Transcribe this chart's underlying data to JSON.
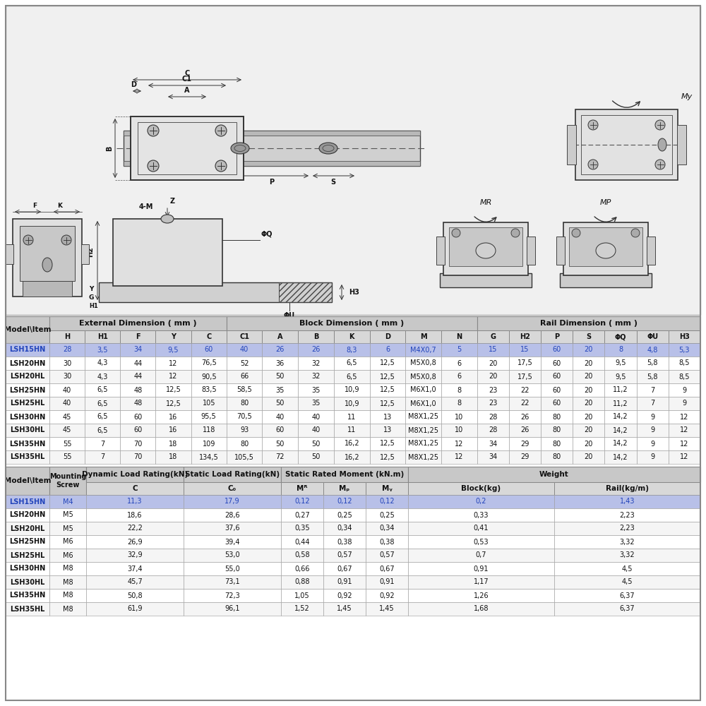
{
  "table1_header_groups": [
    {
      "label": "External Dimension ( mm )",
      "cols": 5
    },
    {
      "label": "Block Dimension ( mm )",
      "cols": 7
    },
    {
      "label": "Rail Dimension ( mm )",
      "cols": 7
    }
  ],
  "table1_subheader": [
    "H",
    "H1",
    "F",
    "Y",
    "C",
    "C1",
    "A",
    "B",
    "K",
    "D",
    "M",
    "N",
    "G",
    "H2",
    "P",
    "S",
    "ΦQ",
    "ΦU",
    "H3"
  ],
  "table1_rows": [
    [
      "LSH15HN",
      "28",
      "3,5",
      "34",
      "9,5",
      "60",
      "40",
      "26",
      "26",
      "8,3",
      "6",
      "M4X0,7",
      "5",
      "15",
      "15",
      "60",
      "20",
      "8",
      "4,8",
      "5,3"
    ],
    [
      "LSH20HN",
      "30",
      "4,3",
      "44",
      "12",
      "76,5",
      "52",
      "36",
      "32",
      "6,5",
      "12,5",
      "M5X0,8",
      "6",
      "20",
      "17,5",
      "60",
      "20",
      "9,5",
      "5,8",
      "8,5"
    ],
    [
      "LSH20HL",
      "30",
      "4,3",
      "44",
      "12",
      "90,5",
      "66",
      "50",
      "32",
      "6,5",
      "12,5",
      "M5X0,8",
      "6",
      "20",
      "17,5",
      "60",
      "20",
      "9,5",
      "5,8",
      "8,5"
    ],
    [
      "LSH25HN",
      "40",
      "6,5",
      "48",
      "12,5",
      "83,5",
      "58,5",
      "35",
      "35",
      "10,9",
      "12,5",
      "M6X1,0",
      "8",
      "23",
      "22",
      "60",
      "20",
      "11,2",
      "7",
      "9"
    ],
    [
      "LSH25HL",
      "40",
      "6,5",
      "48",
      "12,5",
      "105",
      "80",
      "50",
      "35",
      "10,9",
      "12,5",
      "M6X1,0",
      "8",
      "23",
      "22",
      "60",
      "20",
      "11,2",
      "7",
      "9"
    ],
    [
      "LSH30HN",
      "45",
      "6,5",
      "60",
      "16",
      "95,5",
      "70,5",
      "40",
      "40",
      "11",
      "13",
      "M8X1,25",
      "10",
      "28",
      "26",
      "80",
      "20",
      "14,2",
      "9",
      "12"
    ],
    [
      "LSH30HL",
      "45",
      "6,5",
      "60",
      "16",
      "118",
      "93",
      "60",
      "40",
      "11",
      "13",
      "M8X1,25",
      "10",
      "28",
      "26",
      "80",
      "20",
      "14,2",
      "9",
      "12"
    ],
    [
      "LSH35HN",
      "55",
      "7",
      "70",
      "18",
      "109",
      "80",
      "50",
      "50",
      "16,2",
      "12,5",
      "M8X1,25",
      "12",
      "34",
      "29",
      "80",
      "20",
      "14,2",
      "9",
      "12"
    ],
    [
      "LSH35HL",
      "55",
      "7",
      "70",
      "18",
      "134,5",
      "105,5",
      "72",
      "50",
      "16,2",
      "12,5",
      "M8X1,25",
      "12",
      "34",
      "29",
      "80",
      "20",
      "14,2",
      "9",
      "12"
    ]
  ],
  "table1_highlight_row": 0,
  "table2_rows": [
    [
      "LSH15HN",
      "M4",
      "11,3",
      "17,9",
      "0,12",
      "0,12",
      "0,12",
      "0,2",
      "1,43"
    ],
    [
      "LSH20HN",
      "M5",
      "18,6",
      "28,6",
      "0,27",
      "0,25",
      "0,25",
      "0,33",
      "2,23"
    ],
    [
      "LSH20HL",
      "M5",
      "22,2",
      "37,6",
      "0,35",
      "0,34",
      "0,34",
      "0,41",
      "2,23"
    ],
    [
      "LSH25HN",
      "M6",
      "26,9",
      "39,4",
      "0,44",
      "0,38",
      "0,38",
      "0,53",
      "3,32"
    ],
    [
      "LSH25HL",
      "M6",
      "32,9",
      "53,0",
      "0,58",
      "0,57",
      "0,57",
      "0,7",
      "3,32"
    ],
    [
      "LSH30HN",
      "M8",
      "37,4",
      "55,0",
      "0,66",
      "0,67",
      "0,67",
      "0,91",
      "4,5"
    ],
    [
      "LSH30HL",
      "M8",
      "45,7",
      "73,1",
      "0,88",
      "0,91",
      "0,91",
      "1,17",
      "4,5"
    ],
    [
      "LSH35HN",
      "M8",
      "50,8",
      "72,3",
      "1,05",
      "0,92",
      "0,92",
      "1,26",
      "6,37"
    ],
    [
      "LSH35HL",
      "M8",
      "61,9",
      "96,1",
      "1,52",
      "1,45",
      "1,45",
      "1,68",
      "6,37"
    ]
  ],
  "table2_highlight_row": 0,
  "highlight_color": "#b8c0e8",
  "header_bg": "#c8c8c8",
  "subheader_bg": "#d8d8d8",
  "row_bg_even": "#f5f5f5",
  "row_bg_odd": "#ffffff",
  "border_color": "#888888",
  "text_color": "#111111",
  "highlight_text_color": "#2244bb",
  "drawing_bg": "#f0f0f0",
  "drawing_bg2": "#ffffff"
}
